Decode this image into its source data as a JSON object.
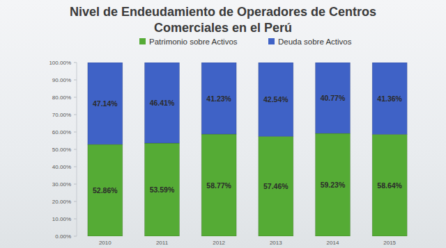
{
  "chart_data": {
    "type": "bar",
    "title": "Nivel de Endeudamiento de Operadores de Centros Comerciales en el Perú",
    "categories": [
      "2010",
      "2011",
      "2012",
      "2013",
      "2014",
      "2015"
    ],
    "stacked": true,
    "data_labels": true,
    "grid": false,
    "legend": "top",
    "series": [
      {
        "name": "Patrimonio sobre Activos",
        "color": "#55ab35",
        "values": [
          52.86,
          53.59,
          58.77,
          57.46,
          59.23,
          58.64
        ],
        "value_labels": [
          "52.86%",
          "53.59%",
          "58.77%",
          "57.46%",
          "59.23%",
          "58.64%"
        ]
      },
      {
        "name": "Deuda sobre Activos",
        "color": "#3f62c6",
        "values": [
          47.14,
          46.41,
          41.23,
          42.54,
          40.77,
          41.36
        ],
        "value_labels": [
          "47.14%",
          "46.41%",
          "41.23%",
          "42.54%",
          "40.77%",
          "41.36%"
        ]
      }
    ],
    "ylim": [
      0,
      100
    ],
    "yticks": [
      {
        "value": 0,
        "label": "0.00%"
      },
      {
        "value": 10,
        "label": "10.00%"
      },
      {
        "value": 20,
        "label": "20.00%"
      },
      {
        "value": 30,
        "label": "30.00%"
      },
      {
        "value": 40,
        "label": "40.00%"
      },
      {
        "value": 50,
        "label": "50.00%"
      },
      {
        "value": 60,
        "label": "60.00%"
      },
      {
        "value": 70,
        "label": "70.00%"
      },
      {
        "value": 80,
        "label": "80.00%"
      },
      {
        "value": 90,
        "label": "90.00%"
      },
      {
        "value": 100,
        "label": "100.00%"
      }
    ]
  }
}
